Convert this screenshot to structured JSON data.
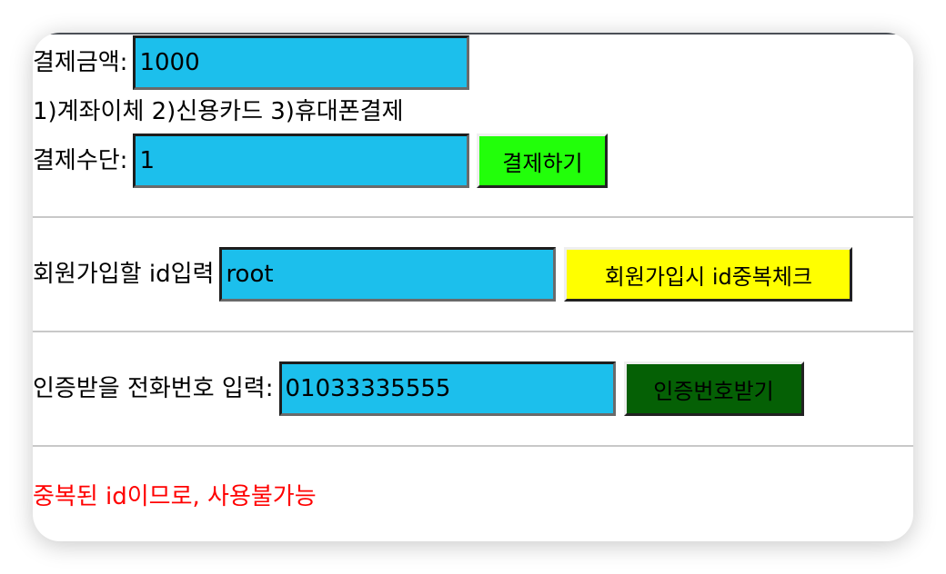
{
  "payment": {
    "amount_label": "결제금액:",
    "amount_value": "1000",
    "methods_text": "1)계좌이체 2)신용카드 3)휴대폰결제",
    "method_label": "결제수단:",
    "method_value": "1",
    "pay_button": "결제하기",
    "pay_button_color": "#22ff0a"
  },
  "signup": {
    "id_label": "회원가입할 id입력",
    "id_value": "root",
    "check_button": "회원가입시 id중복체크",
    "check_button_color": "#ffff00"
  },
  "phone": {
    "label": "인증받을 전화번호 입력:",
    "value": "01033335555",
    "verify_button": "인증번호받기",
    "verify_button_color": "#056005"
  },
  "message": {
    "text": "중복된 id이므로, 사용불가능",
    "color": "#ff0000"
  },
  "colors": {
    "input_bg": "#1cbfec"
  }
}
